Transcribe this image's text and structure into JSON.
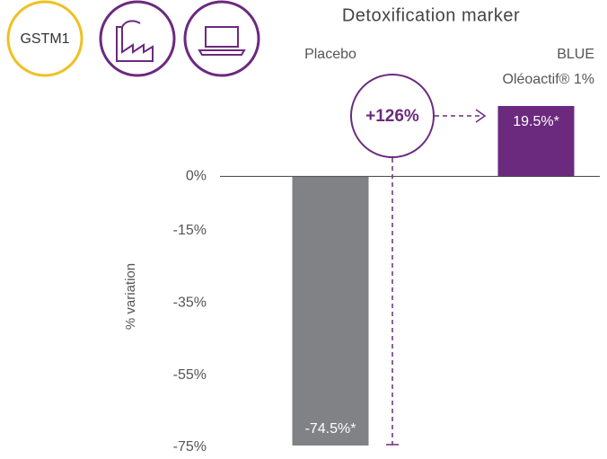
{
  "chart_data": {
    "type": "bar",
    "title": "Detoxification marker",
    "badge": "GSTM1",
    "y_label": "% variation",
    "annotations": [
      "+126%"
    ],
    "categories": [
      "Placebo",
      "BLUE\nOléoactif® 1%"
    ],
    "values": [
      -74.5,
      19.5
    ],
    "value_labels": [
      "-74.5%*",
      "19.5%*"
    ],
    "colors": [
      "#818285",
      "#6b2a7e"
    ],
    "ylim": [
      -75,
      19.5
    ],
    "yticks": [
      {
        "value": 0,
        "label": "0%"
      },
      {
        "value": -15,
        "label": "-15%"
      },
      {
        "value": -35,
        "label": "-35%"
      },
      {
        "value": -55,
        "label": "-55%"
      },
      {
        "value": -75,
        "label": "-75%"
      }
    ],
    "grid": false
  }
}
